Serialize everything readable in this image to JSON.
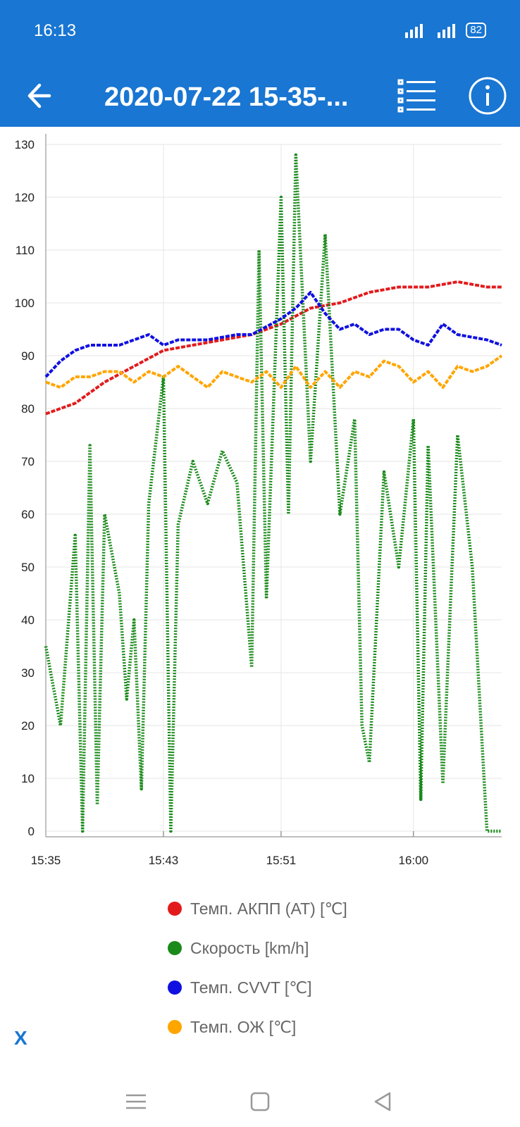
{
  "status": {
    "time": "16:13",
    "battery": "82"
  },
  "app": {
    "title": "2020-07-22 15-35-..."
  },
  "icons": {
    "back": "back-arrow-icon",
    "list": "list-icon",
    "info": "info-icon",
    "nav_menu": "menu-icon",
    "nav_home": "home-icon",
    "nav_back": "back-triangle-icon"
  },
  "close_label": "X",
  "chart_data": {
    "type": "line",
    "x_ticks": [
      "15:35",
      "15:43",
      "15:51",
      "16:00"
    ],
    "x_range": [
      "15:35",
      "16:06"
    ],
    "ylim": [
      0,
      130
    ],
    "y_ticks": [
      0,
      10,
      20,
      30,
      40,
      50,
      60,
      70,
      80,
      90,
      100,
      110,
      120,
      130
    ],
    "grid": true,
    "legend_position": "bottom",
    "series": [
      {
        "name": "Темп. АКПП (AT) [℃]",
        "color": "#e31a1c",
        "x": [
          "15:35",
          "15:37",
          "15:39",
          "15:41",
          "15:43",
          "15:45",
          "15:47",
          "15:49",
          "15:51",
          "15:53",
          "15:55",
          "15:57",
          "15:59",
          "16:01",
          "16:03",
          "16:05",
          "16:06"
        ],
        "values": [
          79,
          81,
          85,
          88,
          91,
          92,
          93,
          94,
          96,
          99,
          100,
          102,
          103,
          103,
          104,
          103,
          103
        ]
      },
      {
        "name": "Скорость [km/h]",
        "color": "#1a8a1a",
        "x": [
          "15:35",
          "15:36",
          "15:37",
          "15:37.5",
          "15:38",
          "15:38.5",
          "15:39",
          "15:40",
          "15:40.5",
          "15:41",
          "15:41.5",
          "15:42",
          "15:43",
          "15:43.5",
          "15:44",
          "15:45",
          "15:46",
          "15:47",
          "15:48",
          "15:49",
          "15:49.5",
          "15:50",
          "15:51",
          "15:51.5",
          "15:52",
          "15:53",
          "15:54",
          "15:55",
          "15:56",
          "15:56.5",
          "15:57",
          "15:58",
          "15:59",
          "16:00",
          "16:00.5",
          "16:01",
          "16:02",
          "16:03",
          "16:04",
          "16:05",
          "16:06"
        ],
        "values": [
          35,
          20,
          56,
          0,
          73,
          5,
          60,
          45,
          25,
          40,
          8,
          62,
          86,
          0,
          58,
          70,
          62,
          72,
          66,
          31,
          110,
          44,
          120,
          60,
          128,
          70,
          113,
          60,
          78,
          20,
          13,
          68,
          50,
          78,
          6,
          73,
          9,
          75,
          50,
          0,
          0
        ]
      },
      {
        "name": "Темп. CVVT [℃]",
        "color": "#1010e0",
        "x": [
          "15:35",
          "15:36",
          "15:37",
          "15:38",
          "15:39",
          "15:40",
          "15:41",
          "15:42",
          "15:43",
          "15:44",
          "15:46",
          "15:48",
          "15:49",
          "15:51",
          "15:52",
          "15:53",
          "15:54",
          "15:55",
          "15:56",
          "15:57",
          "15:58",
          "15:59",
          "16:00",
          "16:01",
          "16:02",
          "16:03",
          "16:05",
          "16:06"
        ],
        "values": [
          86,
          89,
          91,
          92,
          92,
          92,
          93,
          94,
          92,
          93,
          93,
          94,
          94,
          97,
          99,
          102,
          98,
          95,
          96,
          94,
          95,
          95,
          93,
          92,
          96,
          94,
          93,
          92
        ]
      },
      {
        "name": "Темп. ОЖ [℃]",
        "color": "#ffa500",
        "x": [
          "15:35",
          "15:36",
          "15:37",
          "15:38",
          "15:39",
          "15:40",
          "15:41",
          "15:42",
          "15:43",
          "15:44",
          "15:45",
          "15:46",
          "15:47",
          "15:48",
          "15:49",
          "15:50",
          "15:51",
          "15:52",
          "15:53",
          "15:54",
          "15:55",
          "15:56",
          "15:57",
          "15:58",
          "15:59",
          "16:00",
          "16:01",
          "16:02",
          "16:03",
          "16:04",
          "16:05",
          "16:06"
        ],
        "values": [
          85,
          84,
          86,
          86,
          87,
          87,
          85,
          87,
          86,
          88,
          86,
          84,
          87,
          86,
          85,
          87,
          84,
          88,
          84,
          87,
          84,
          87,
          86,
          89,
          88,
          85,
          87,
          84,
          88,
          87,
          88,
          90
        ]
      }
    ]
  }
}
